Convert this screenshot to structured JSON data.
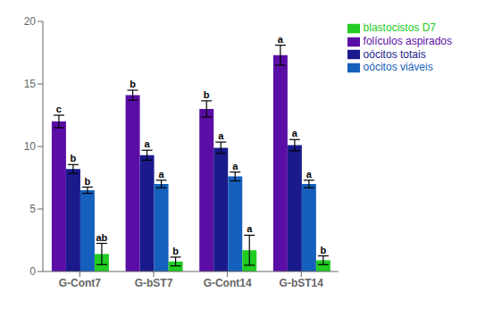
{
  "chart_data": {
    "type": "bar",
    "categories": [
      "G-Cont7",
      "G-bST7",
      "G-Cont14",
      "G-bST14"
    ],
    "series": [
      {
        "name": "folículos aspirados",
        "color": "#5B0EA6",
        "values": [
          12.0,
          14.1,
          13.0,
          17.3
        ],
        "errors": [
          0.5,
          0.4,
          0.65,
          0.8
        ],
        "letters": [
          "c",
          "b",
          "b",
          "a"
        ]
      },
      {
        "name": "oócitos totais",
        "color": "#1a1a8c",
        "values": [
          8.2,
          9.3,
          9.9,
          10.1
        ],
        "errors": [
          0.35,
          0.4,
          0.45,
          0.45
        ],
        "letters": [
          "b",
          "a",
          "a",
          "a"
        ]
      },
      {
        "name": "oócitos viáveis",
        "color": "#1560bd",
        "values": [
          6.5,
          7.0,
          7.6,
          7.0
        ],
        "errors": [
          0.25,
          0.3,
          0.35,
          0.3
        ],
        "letters": [
          "b",
          "a",
          "a",
          "a"
        ]
      },
      {
        "name": "blastocistos D7",
        "color": "#22cc22",
        "values": [
          1.4,
          0.8,
          1.7,
          0.9
        ],
        "errors": [
          0.85,
          0.35,
          1.2,
          0.35
        ],
        "letters": [
          "ab",
          "b",
          "a",
          "b"
        ]
      }
    ],
    "ylim": [
      0,
      20
    ],
    "yticks": [
      0,
      5,
      10,
      15,
      20
    ],
    "grid": false,
    "legend": "upper right"
  }
}
